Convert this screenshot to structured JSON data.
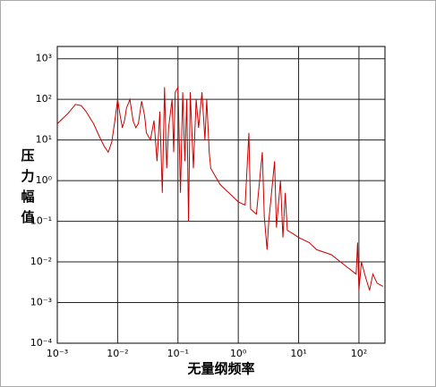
{
  "chart_data": {
    "type": "line",
    "x_label": "无量纲频率",
    "y_label": "压力幅值",
    "xscale": "log",
    "yscale": "log",
    "grid": true,
    "xlim": [
      0.001,
      270
    ],
    "ylim": [
      0.0001,
      2000
    ],
    "xticks": [
      {
        "value": 0.001,
        "label": "10⁻³"
      },
      {
        "value": 0.01,
        "label": "10⁻²"
      },
      {
        "value": 0.1,
        "label": "10⁻¹"
      },
      {
        "value": 1,
        "label": "10⁰"
      },
      {
        "value": 10,
        "label": "10¹"
      },
      {
        "value": 100,
        "label": "10²"
      }
    ],
    "yticks": [
      {
        "value": 0.0001,
        "label": "10⁻⁴"
      },
      {
        "value": 0.001,
        "label": "10⁻³"
      },
      {
        "value": 0.01,
        "label": "10⁻²"
      },
      {
        "value": 0.1,
        "label": "10⁻¹"
      },
      {
        "value": 1,
        "label": "10⁰"
      },
      {
        "value": 10,
        "label": "10¹"
      },
      {
        "value": 100,
        "label": "10²"
      },
      {
        "value": 1000,
        "label": "10³"
      }
    ],
    "series": [
      {
        "color": "#cc0000",
        "x": [
          0.001,
          0.0015,
          0.002,
          0.0025,
          0.003,
          0.004,
          0.005,
          0.006,
          0.007,
          0.008,
          0.009,
          0.01,
          0.011,
          0.012,
          0.013,
          0.014,
          0.016,
          0.018,
          0.02,
          0.022,
          0.025,
          0.028,
          0.03,
          0.035,
          0.04,
          0.045,
          0.05,
          0.055,
          0.06,
          0.065,
          0.07,
          0.08,
          0.085,
          0.09,
          0.1,
          0.11,
          0.12,
          0.13,
          0.14,
          0.15,
          0.16,
          0.18,
          0.2,
          0.22,
          0.25,
          0.28,
          0.3,
          0.33,
          0.35,
          0.5,
          0.7,
          1,
          1.3,
          1.5,
          1.6,
          2,
          2.5,
          2.7,
          3,
          3.2,
          4,
          4.3,
          5,
          5.5,
          6,
          6.5,
          8,
          10,
          15,
          20,
          35,
          60,
          90,
          95,
          100,
          110,
          130,
          150,
          170,
          200,
          250
        ],
        "values": [
          25,
          45,
          75,
          70,
          50,
          25,
          12,
          7,
          5,
          9,
          30,
          100,
          40,
          20,
          30,
          60,
          100,
          30,
          20,
          25,
          90,
          40,
          15,
          10,
          30,
          3,
          50,
          0.5,
          200,
          2,
          20,
          100,
          5,
          150,
          200,
          0.5,
          150,
          3,
          100,
          0.1,
          150,
          2,
          100,
          20,
          150,
          10,
          100,
          5,
          2,
          0.8,
          0.5,
          0.3,
          0.25,
          15,
          0.2,
          0.15,
          5,
          0.13,
          0.02,
          0.1,
          3,
          0.07,
          1,
          0.04,
          0.5,
          0.06,
          0.05,
          0.04,
          0.03,
          0.02,
          0.015,
          0.008,
          0.005,
          0.03,
          0.002,
          0.01,
          0.004,
          0.002,
          0.005,
          0.003,
          0.0025
        ]
      }
    ]
  }
}
